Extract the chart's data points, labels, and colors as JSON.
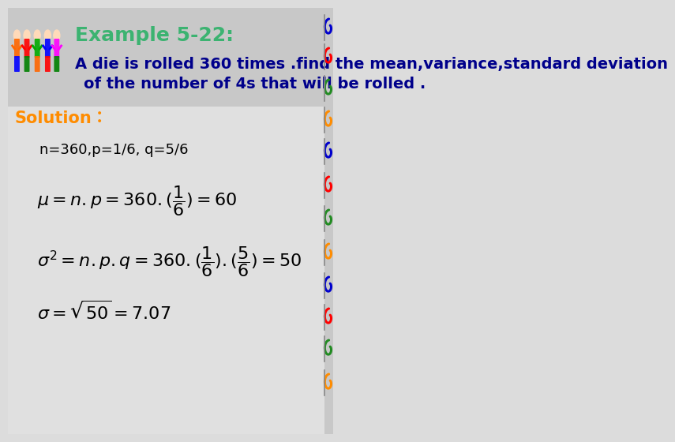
{
  "title": "Example 5-22:",
  "title_color": "#3CB371",
  "title_fontsize": 18,
  "problem_text_line1": "A die is rolled 360 times .find the mean,variance,standard deviation",
  "problem_text_line2": "of the number of 4s that will be rolled .",
  "problem_color": "#00008B",
  "problem_fontsize": 14,
  "solution_label": "Solution：",
  "solution_color": "#FF8C00",
  "solution_fontsize": 15,
  "params_text": "n=360,p=1/6, q=5/6",
  "params_fontsize": 13,
  "params_color": "#000000",
  "formula1": "$\\mu = n.p = 360.(\\dfrac{1}{6}) = 60$",
  "formula2": "$\\sigma^2 = n.p.q = 360.(\\dfrac{1}{6}).(\\dfrac{5}{6}) = 50$",
  "formula3": "$\\sigma = \\sqrt{50} = 7.07$",
  "formula_color": "#000000",
  "formula_fontsize": 16,
  "bg_color": "#DCDCDC",
  "header_bg": "#C8C8C8",
  "content_bg": "#E0E0E0",
  "spiral_colors": [
    "#0000CD",
    "#FF0000",
    "#228B22",
    "#FF8C00",
    "#0000CD",
    "#FF0000",
    "#228B22",
    "#FF8C00",
    "#0000CD",
    "#FF0000",
    "#228B22",
    "#FF8C00"
  ],
  "spiral_y_positions": [
    515,
    478,
    438,
    398,
    358,
    315,
    273,
    230,
    188,
    148,
    108,
    65
  ]
}
